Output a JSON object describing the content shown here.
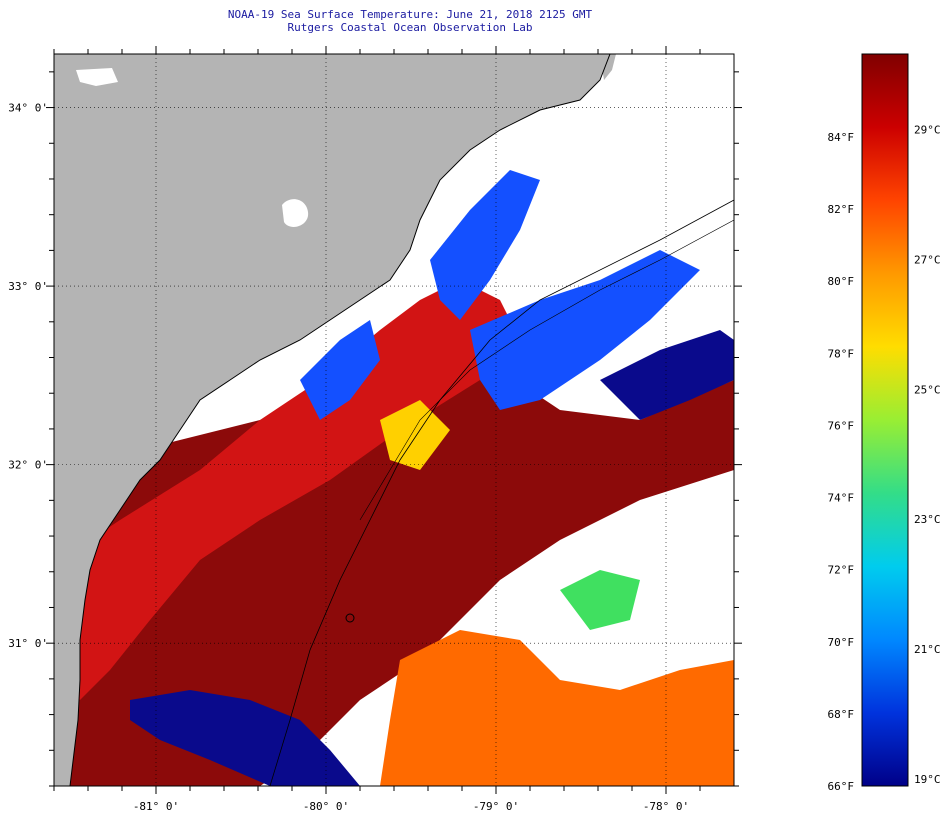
{
  "title": {
    "line1": "NOAA-19 Sea Surface Temperature:  June 21, 2018 2125 GMT",
    "line2": "Rutgers Coastal Ocean Observation Lab"
  },
  "map": {
    "lat_labels": [
      "34° 0'",
      "33° 0'",
      "32° 0'",
      "31° 0'"
    ],
    "lon_labels": [
      "-81° 0'",
      "-80° 0'",
      "-79° 0'",
      "-78° 0'"
    ],
    "lat_values": [
      34,
      33,
      32,
      31
    ],
    "lon_values": [
      -81,
      -80,
      -79,
      -78
    ],
    "lat_range": [
      30.2,
      34.3
    ],
    "lon_range": [
      -81.6,
      -77.6
    ],
    "colors": {
      "land": "#b4b4b4",
      "cloud": "#ffffff",
      "dark_red": "#8c0a0a",
      "red": "#d21414",
      "orange": "#ff6a00",
      "yellow": "#ffd000",
      "green": "#40e060",
      "cyan": "#00d0ff",
      "blue": "#1450ff",
      "navy": "#0a0a8c"
    }
  },
  "colorbar": {
    "fahrenheit_labels": [
      "84°F",
      "82°F",
      "80°F",
      "78°F",
      "76°F",
      "74°F",
      "72°F",
      "70°F",
      "68°F",
      "66°F"
    ],
    "fahrenheit_values": [
      84,
      82,
      80,
      78,
      76,
      74,
      72,
      70,
      68,
      66
    ],
    "celsius_labels": [
      "29°C",
      "27°C",
      "25°C",
      "23°C",
      "21°C",
      "19°C"
    ],
    "celsius_values": [
      29,
      27,
      25,
      23,
      21,
      19
    ],
    "range_f": [
      66,
      86.3
    ],
    "stops": [
      "#800000",
      "#cc0000",
      "#ff4400",
      "#ff9900",
      "#ffdd00",
      "#99ee33",
      "#33dd88",
      "#00ccee",
      "#0088ff",
      "#0033dd",
      "#000088"
    ]
  }
}
